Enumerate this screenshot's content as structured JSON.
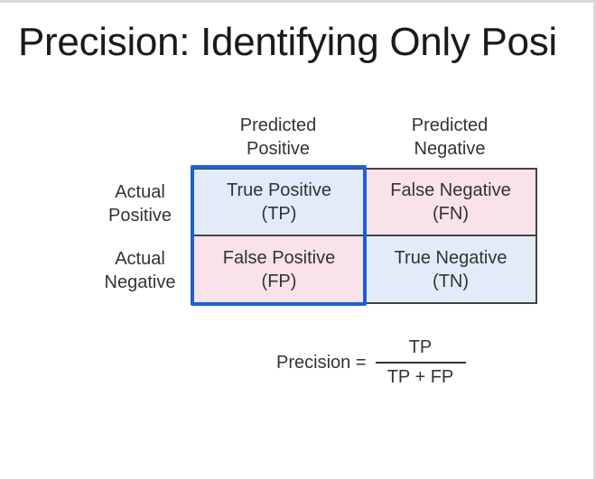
{
  "title": "Precision: Identifying Only Posi",
  "matrix": {
    "col_headers": [
      {
        "line1": "Predicted",
        "line2": "Positive"
      },
      {
        "line1": "Predicted",
        "line2": "Negative"
      }
    ],
    "row_headers": [
      {
        "line1": "Actual",
        "line2": "Positive"
      },
      {
        "line1": "Actual",
        "line2": "Negative"
      }
    ],
    "cells": [
      {
        "label": "True Positive",
        "abbr": "(TP)",
        "color": "#e3ebf8"
      },
      {
        "label": "False Negative",
        "abbr": "(FN)",
        "color": "#f9e2ea"
      },
      {
        "label": "False Positive",
        "abbr": "(FP)",
        "color": "#f9e2ea"
      },
      {
        "label": "True Negative",
        "abbr": "(TN)",
        "color": "#e3ebf8"
      }
    ],
    "highlight_color": "#1f5fd6"
  },
  "formula": {
    "lhs": "Precision =",
    "numerator": "TP",
    "denominator": "TP + FP"
  }
}
